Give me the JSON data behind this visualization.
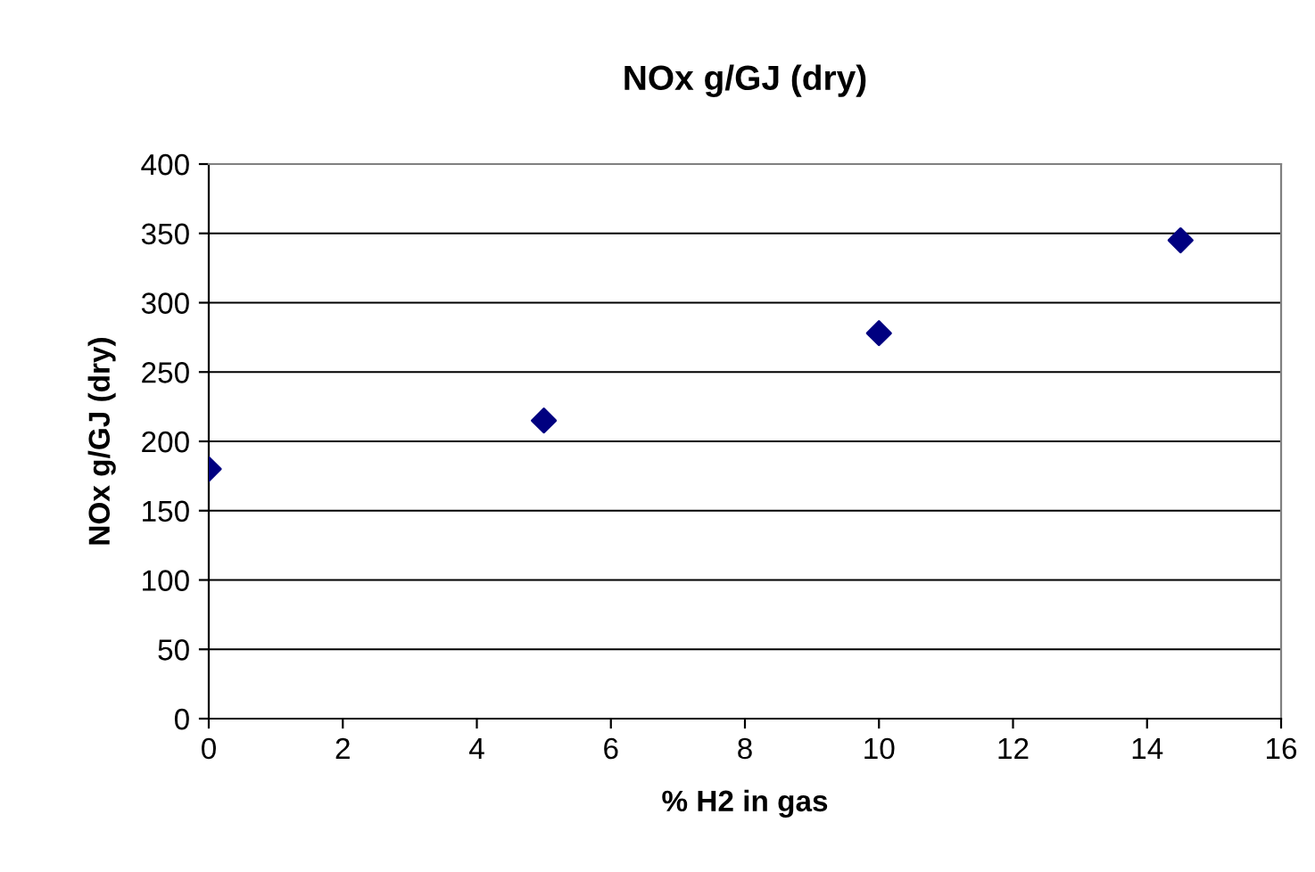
{
  "chart_data": {
    "type": "scatter",
    "title": "NOx g/GJ (dry)",
    "xlabel": "% H2 in gas",
    "ylabel": "NOx g/GJ (dry)",
    "x": [
      0,
      5,
      10,
      14.5
    ],
    "series": [
      {
        "color": "#000080",
        "values": [
          180,
          215,
          278,
          345
        ]
      }
    ],
    "xlim": [
      0,
      16
    ],
    "xticks": [
      0,
      2,
      4,
      6,
      8,
      10,
      12,
      14,
      16
    ],
    "ylim": [
      0,
      400
    ],
    "yticks": [
      0,
      50,
      100,
      150,
      200,
      250,
      300,
      350,
      400
    ],
    "grid": "y",
    "marker": "diamond",
    "legend": false
  }
}
